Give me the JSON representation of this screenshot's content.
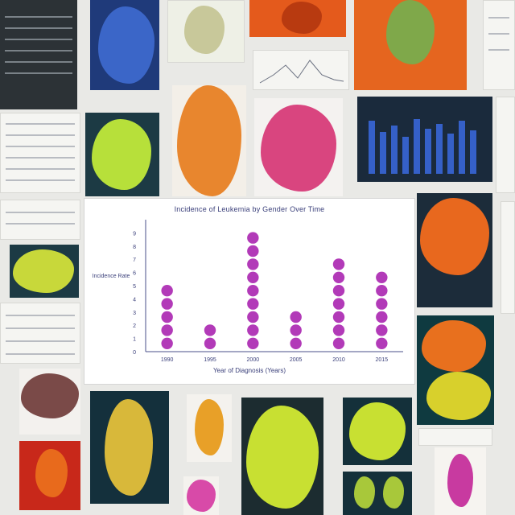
{
  "chart_data": {
    "type": "scatter",
    "title": "Incidence of Leukemia by Gender Over Time",
    "xlabel": "Year of Diagnosis (Years)",
    "ylabel": "Incidence Rate",
    "categories": [
      "1990",
      "1995",
      "2000",
      "2005",
      "2010",
      "2015"
    ],
    "values": [
      5,
      2,
      9,
      3,
      7,
      6
    ],
    "yticks": [
      0,
      1,
      2,
      3,
      4,
      5,
      6,
      7,
      8,
      9
    ],
    "ylim": [
      0,
      10
    ],
    "marker_color": "#b23ab8",
    "grid": false,
    "legend": "none"
  },
  "colors": {
    "panel_bg": "#ffffff",
    "axis": "#4a4f8a",
    "text": "#3a3f7a"
  }
}
